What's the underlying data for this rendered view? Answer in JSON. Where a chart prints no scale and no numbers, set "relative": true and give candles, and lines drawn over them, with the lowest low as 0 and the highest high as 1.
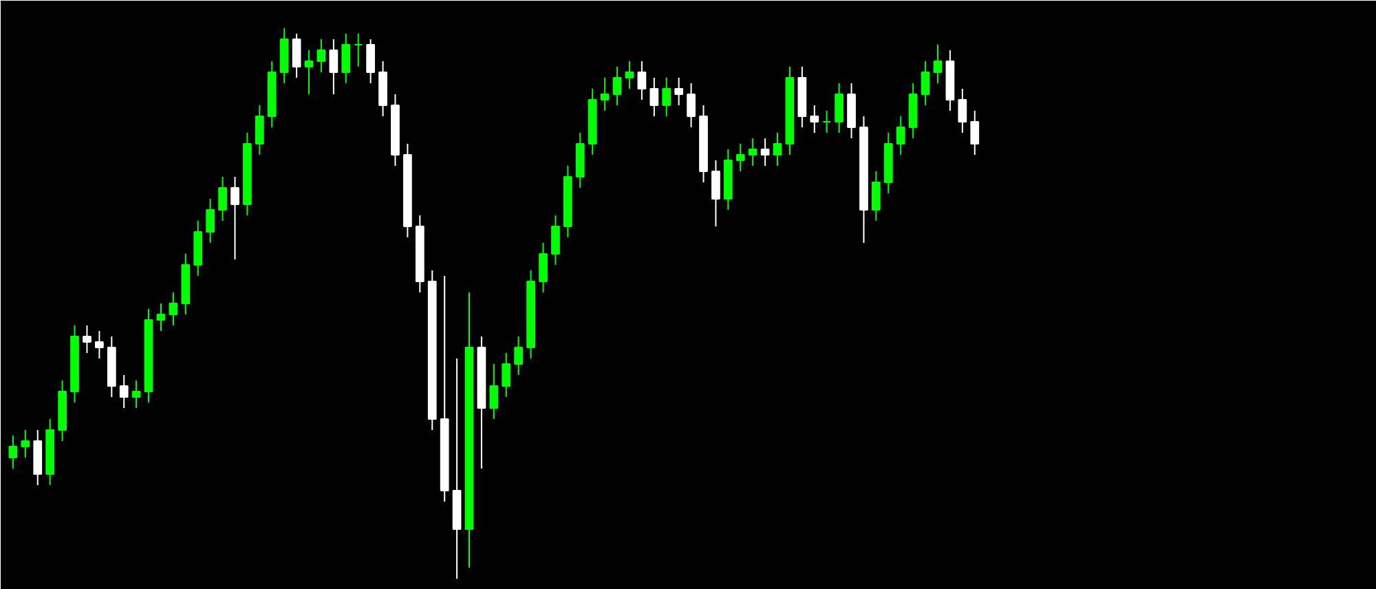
{
  "chart_data": {
    "type": "candlestick",
    "relative": true,
    "categories": [
      null,
      null,
      null,
      null,
      null,
      null,
      null,
      null,
      null,
      null,
      null,
      null,
      null,
      null,
      null,
      null,
      null,
      null,
      null,
      null,
      null,
      null,
      null,
      null,
      null,
      null,
      null,
      null,
      null,
      null,
      null,
      null,
      null,
      null,
      null,
      null,
      null,
      null,
      null,
      null,
      null,
      null,
      null,
      null,
      null,
      null,
      null,
      null,
      null,
      null,
      null,
      null,
      null,
      null,
      null,
      null,
      null,
      null,
      null,
      null,
      null,
      null,
      null,
      null,
      null,
      null,
      null,
      null,
      null,
      null,
      null,
      null,
      null,
      null,
      null,
      null,
      null,
      null,
      null
    ],
    "ohlc": [
      [
        0.22,
        0.26,
        0.2,
        0.24
      ],
      [
        0.24,
        0.27,
        0.22,
        0.25
      ],
      [
        0.25,
        0.27,
        0.17,
        0.19
      ],
      [
        0.19,
        0.29,
        0.17,
        0.27
      ],
      [
        0.27,
        0.36,
        0.25,
        0.34
      ],
      [
        0.34,
        0.46,
        0.32,
        0.44
      ],
      [
        0.44,
        0.46,
        0.41,
        0.43
      ],
      [
        0.43,
        0.45,
        0.4,
        0.42
      ],
      [
        0.42,
        0.44,
        0.33,
        0.35
      ],
      [
        0.35,
        0.37,
        0.31,
        0.33
      ],
      [
        0.33,
        0.36,
        0.31,
        0.34
      ],
      [
        0.34,
        0.49,
        0.32,
        0.47
      ],
      [
        0.47,
        0.5,
        0.45,
        0.48
      ],
      [
        0.48,
        0.52,
        0.46,
        0.5
      ],
      [
        0.5,
        0.59,
        0.48,
        0.57
      ],
      [
        0.57,
        0.65,
        0.55,
        0.63
      ],
      [
        0.63,
        0.69,
        0.61,
        0.67
      ],
      [
        0.67,
        0.73,
        0.65,
        0.71
      ],
      [
        0.71,
        0.73,
        0.58,
        0.68
      ],
      [
        0.68,
        0.81,
        0.66,
        0.79
      ],
      [
        0.79,
        0.86,
        0.77,
        0.84
      ],
      [
        0.84,
        0.94,
        0.82,
        0.92
      ],
      [
        0.92,
        1.0,
        0.9,
        0.98
      ],
      [
        0.98,
        0.99,
        0.91,
        0.93
      ],
      [
        0.93,
        0.96,
        0.88,
        0.94
      ],
      [
        0.94,
        0.98,
        0.92,
        0.96
      ],
      [
        0.96,
        0.98,
        0.88,
        0.92
      ],
      [
        0.92,
        0.99,
        0.9,
        0.97
      ],
      [
        0.97,
        0.99,
        0.93,
        0.97
      ],
      [
        0.97,
        0.98,
        0.9,
        0.92
      ],
      [
        0.92,
        0.94,
        0.84,
        0.86
      ],
      [
        0.86,
        0.88,
        0.75,
        0.77
      ],
      [
        0.77,
        0.79,
        0.62,
        0.64
      ],
      [
        0.64,
        0.66,
        0.52,
        0.54
      ],
      [
        0.54,
        0.56,
        0.27,
        0.29
      ],
      [
        0.29,
        0.55,
        0.14,
        0.16
      ],
      [
        0.16,
        0.4,
        0.0,
        0.09
      ],
      [
        0.09,
        0.52,
        0.02,
        0.42
      ],
      [
        0.42,
        0.44,
        0.2,
        0.31
      ],
      [
        0.31,
        0.39,
        0.29,
        0.35
      ],
      [
        0.35,
        0.41,
        0.33,
        0.39
      ],
      [
        0.39,
        0.44,
        0.37,
        0.42
      ],
      [
        0.42,
        0.56,
        0.4,
        0.54
      ],
      [
        0.54,
        0.61,
        0.52,
        0.59
      ],
      [
        0.59,
        0.66,
        0.57,
        0.64
      ],
      [
        0.64,
        0.75,
        0.62,
        0.73
      ],
      [
        0.73,
        0.81,
        0.71,
        0.79
      ],
      [
        0.79,
        0.89,
        0.77,
        0.87
      ],
      [
        0.87,
        0.91,
        0.85,
        0.88
      ],
      [
        0.88,
        0.93,
        0.86,
        0.91
      ],
      [
        0.91,
        0.94,
        0.89,
        0.92
      ],
      [
        0.92,
        0.94,
        0.87,
        0.89
      ],
      [
        0.89,
        0.91,
        0.84,
        0.86
      ],
      [
        0.86,
        0.91,
        0.84,
        0.89
      ],
      [
        0.89,
        0.91,
        0.86,
        0.88
      ],
      [
        0.88,
        0.9,
        0.82,
        0.84
      ],
      [
        0.84,
        0.86,
        0.72,
        0.74
      ],
      [
        0.74,
        0.76,
        0.64,
        0.69
      ],
      [
        0.69,
        0.78,
        0.67,
        0.76
      ],
      [
        0.76,
        0.79,
        0.74,
        0.77
      ],
      [
        0.77,
        0.8,
        0.75,
        0.78
      ],
      [
        0.78,
        0.8,
        0.75,
        0.77
      ],
      [
        0.77,
        0.81,
        0.75,
        0.79
      ],
      [
        0.79,
        0.93,
        0.77,
        0.91
      ],
      [
        0.91,
        0.93,
        0.82,
        0.84
      ],
      [
        0.84,
        0.86,
        0.81,
        0.83
      ],
      [
        0.83,
        0.85,
        0.81,
        0.83
      ],
      [
        0.83,
        0.9,
        0.81,
        0.88
      ],
      [
        0.88,
        0.9,
        0.8,
        0.82
      ],
      [
        0.82,
        0.84,
        0.61,
        0.67
      ],
      [
        0.67,
        0.74,
        0.65,
        0.72
      ],
      [
        0.72,
        0.81,
        0.7,
        0.79
      ],
      [
        0.79,
        0.84,
        0.77,
        0.82
      ],
      [
        0.82,
        0.9,
        0.8,
        0.88
      ],
      [
        0.88,
        0.94,
        0.86,
        0.92
      ],
      [
        0.92,
        0.97,
        0.9,
        0.94
      ],
      [
        0.94,
        0.96,
        0.85,
        0.87
      ],
      [
        0.87,
        0.89,
        0.81,
        0.83
      ],
      [
        0.83,
        0.85,
        0.77,
        0.79
      ]
    ],
    "colors": [
      "#00ff00",
      "#00ff00",
      "#ffffff",
      "#00ff00",
      "#00ff00",
      "#00ff00",
      "#ffffff",
      "#ffffff",
      "#ffffff",
      "#ffffff",
      "#00ff00",
      "#00ff00",
      "#00ff00",
      "#00ff00",
      "#00ff00",
      "#00ff00",
      "#00ff00",
      "#00ff00",
      "#ffffff",
      "#00ff00",
      "#00ff00",
      "#00ff00",
      "#00ff00",
      "#ffffff",
      "#00ff00",
      "#00ff00",
      "#ffffff",
      "#00ff00",
      "#00ff00",
      "#ffffff",
      "#ffffff",
      "#ffffff",
      "#ffffff",
      "#ffffff",
      "#ffffff",
      "#ffffff",
      "#ffffff",
      "#00ff00",
      "#ffffff",
      "#00ff00",
      "#00ff00",
      "#00ff00",
      "#00ff00",
      "#00ff00",
      "#00ff00",
      "#00ff00",
      "#00ff00",
      "#00ff00",
      "#00ff00",
      "#00ff00",
      "#00ff00",
      "#ffffff",
      "#ffffff",
      "#00ff00",
      "#ffffff",
      "#ffffff",
      "#ffffff",
      "#ffffff",
      "#00ff00",
      "#00ff00",
      "#00ff00",
      "#ffffff",
      "#00ff00",
      "#00ff00",
      "#ffffff",
      "#ffffff",
      "#00ff00",
      "#00ff00",
      "#ffffff",
      "#ffffff",
      "#00ff00",
      "#00ff00",
      "#00ff00",
      "#00ff00",
      "#00ff00",
      "#00ff00",
      "#ffffff",
      "#ffffff",
      "#ffffff"
    ]
  }
}
